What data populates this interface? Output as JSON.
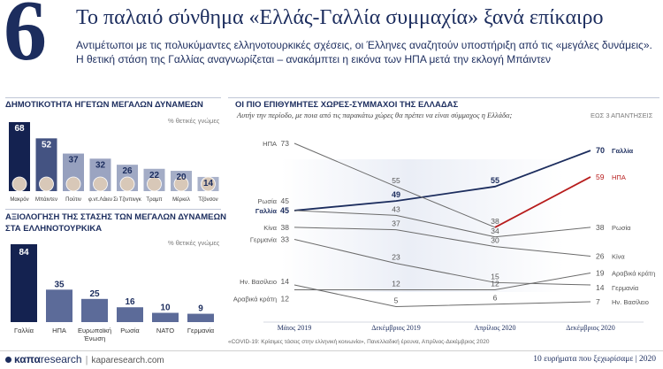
{
  "header": {
    "number": "6",
    "title": "Το παλαιό σύνθημα «Ελλάς-Γαλλία συμμαχία» ξανά επίκαιρο",
    "subtitle": "Αντιμέτωποι με τις πολυκύμαντες ελληνοτουρκικές σχέσεις, οι Έλληνες αναζητούν υποστήριξη από τις «μεγάλες δυνάμεις». Η θετική στάση της Γαλλίας αναγνωρίζεται – ανακάμπτει η εικόνα των ΗΠΑ μετά την εκλογή Μπάιντεν"
  },
  "popularity": {
    "title": "ΔΗΜΟΤΙΚΟΤΗΤΑ ΗΓΕΤΩΝ ΜΕΓΑΛΩΝ ΔΥΝΑΜΕΩΝ",
    "note": "% θετικές γνώμες"
  },
  "assessment": {
    "title": "ΑΞΙΟΛΟΓΗΣΗ ΤΗΣ ΣΤΑΣΗΣ ΤΩΝ ΜΕΓΑΛΩΝ ΔΥΝΑΜΕΩΝ",
    "title2": "ΣΤΑ ΕΛΛΗΝΟΤΟΥΡΚΙΚΑ",
    "note": "% θετικές γνώμες"
  },
  "allies": {
    "title": "ΟΙ ΠΙΟ ΕΠΙΘΥΜΗΤΕΣ ΧΩΡΕΣ-ΣΥΜΜΑΧΟΙ ΤΗΣ ΕΛΛΑΔΑΣ",
    "question": "Αυτήν την περίοδο, με ποια από τις παρακάτω χώρες θα πρέπει να είναι σύμμαχος η Ελλάδα;",
    "note": "ΕΩΣ 3 ΑΠΑΝΤΗΣΕΙΣ"
  },
  "footer": {
    "source": "«COVID-19: Κρίσιμες τάσεις στην ελληνική κοινωνία», Πανελλαδική έρευνα, Απρίλιος-Δεκέμβριος 2020",
    "logo_a": "καπα",
    "logo_b": "research",
    "url": "kaparesearch.com",
    "right": "10 ευρήματα που ξεχωρίσαμε | 2020"
  },
  "colors": {
    "navy": "#1c2d5e",
    "dark_navy": "#142250",
    "bar_mid": "#5a6a96",
    "red": "#b71c1c",
    "grey_line": "#6b6b6b"
  },
  "chart_data": [
    {
      "type": "bar",
      "title": "ΔΗΜΟΤΙΚΟΤΗΤΑ ΗΓΕΤΩΝ ΜΕΓΑΛΩΝ ΔΥΝΑΜΕΩΝ",
      "categories": [
        "Μακρόν",
        "Μπάιντεν",
        "Πούτιν",
        "φ.ντ.Λάιεν",
        "Σι Τζινπινγκ",
        "Τραμπ",
        "Μέρκελ",
        "Τζόνσον"
      ],
      "values": [
        68,
        52,
        37,
        32,
        26,
        22,
        20,
        14
      ],
      "ylabel": "% θετικές γνώμες",
      "ylim": [
        0,
        75
      ]
    },
    {
      "type": "bar",
      "title": "ΑΞΙΟΛΟΓΗΣΗ ΤΗΣ ΣΤΑΣΗΣ ΤΩΝ ΜΕΓΑΛΩΝ ΔΥΝΑΜΕΩΝ ΣΤΑ ΕΛΛΗΝΟΤΟΥΡΚΙΚΑ",
      "categories": [
        "Γαλλία",
        "ΗΠΑ",
        "Ευρωπαϊκή Ένωση",
        "Ρωσία",
        "ΝΑΤΟ",
        "Γερμανία"
      ],
      "values": [
        84,
        35,
        25,
        16,
        10,
        9
      ],
      "ylabel": "% θετικές γνώμες",
      "ylim": [
        0,
        90
      ]
    },
    {
      "type": "line",
      "title": "ΟΙ ΠΙΟ ΕΠΙΘΥΜΗΤΕΣ ΧΩΡΕΣ-ΣΥΜΜΑΧΟΙ ΤΗΣ ΕΛΛΑΔΑΣ",
      "x": [
        "Μάιος 2019",
        "Δεκέμβριος 2019",
        "Απρίλιος 2020",
        "Δεκέμβριος 2020"
      ],
      "ylim": [
        0,
        80
      ],
      "series": [
        {
          "name": "Γαλλία",
          "values": [
            45,
            49,
            55,
            70
          ]
        },
        {
          "name": "ΗΠΑ",
          "values": [
            73,
            55,
            38,
            59
          ]
        },
        {
          "name": "Ρωσία",
          "values": [
            45,
            43,
            34,
            38
          ]
        },
        {
          "name": "Κίνα",
          "values": [
            38,
            37,
            30,
            26
          ]
        },
        {
          "name": "Γερμανία",
          "values": [
            33,
            23,
            15,
            14
          ]
        },
        {
          "name": "Αραβικά κράτη",
          "values": [
            12,
            12,
            12,
            19
          ]
        },
        {
          "name": "Ην. Βασίλειο",
          "values": [
            14,
            5,
            6,
            7
          ]
        }
      ]
    }
  ]
}
